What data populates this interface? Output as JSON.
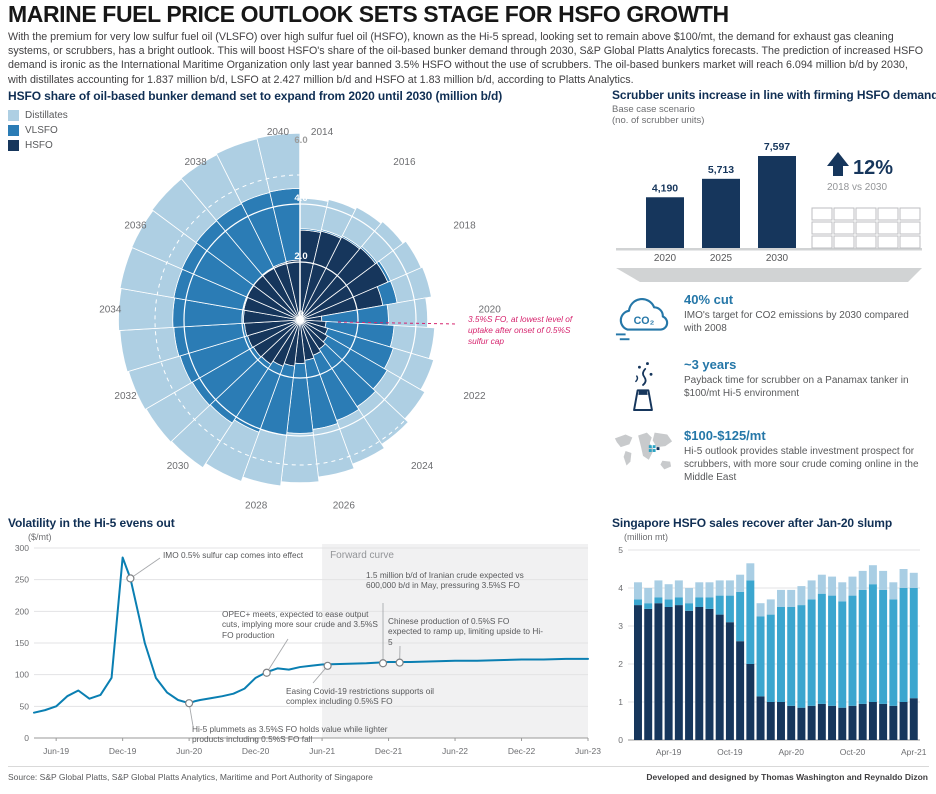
{
  "header": {
    "title": "MARINE FUEL PRICE OUTLOOK SETS STAGE FOR HSFO GROWTH",
    "intro": "With the premium for very low sulfur fuel oil (VLSFO) over high sulfur fuel oil (HSFO), known as the Hi-5 spread, looking set to remain above $100/mt, the demand for exhaust gas cleaning systems, or scrubbers, has a bright outlook. This will boost HSFO's share of the oil-based bunker demand through 2030, S&P Global Platts Analytics forecasts. The prediction of increased HSFO demand is ironic as the International Maritime Organization only last year banned 3.5% HSFO without the use of scrubbers. The oil-based bunkers market will reach 6.094 million b/d by 2030, with distillates accounting for 1.837 million b/d, LSFO at 2.427 million b/d and HSFO at 1.83 million b/d, according to Platts Analytics.",
    "accent_color": "#d6246e"
  },
  "polar": {
    "legend": [
      "Distillates",
      "VLSFO",
      "HSFO"
    ]
  },
  "highlights": [
    {
      "headline": "40% cut",
      "text": "IMO's target for CO2 emissions by 2030 compared with 2008"
    },
    {
      "headline": "~3 years",
      "text": "Payback time for scrubber on a Panamax tanker in $100/mt Hi-5 environment"
    },
    {
      "headline": "$100-$125/mt",
      "text": "Hi-5 outlook provides stable investment prospect for scrubbers, with more sour crude coming online in the Middle East"
    }
  ],
  "highlights_extra": {
    "co2_label": "CO₂"
  },
  "footer": {
    "source": "Source: S&P Global Platts, S&P Global Platts Analytics, Maritime and Port Authority of Singapore",
    "credit": "Developed and designed by Thomas Washington and Reynaldo Dizon"
  },
  "chart_data": [
    {
      "type": "bar",
      "variant": "polar-stacked",
      "title": "HSFO share of oil-based bunker demand set to expand from 2020 until 2030 (million b/d)",
      "unit": "million b/d",
      "rmax": 6.0,
      "ring_ticks": [
        0,
        2,
        4,
        6
      ],
      "ring_tick_labels": [
        "0",
        "2.0",
        "4.0",
        "6.0"
      ],
      "years": [
        2014,
        2015,
        2016,
        2017,
        2018,
        2019,
        2020,
        2021,
        2022,
        2023,
        2024,
        2025,
        2026,
        2027,
        2028,
        2029,
        2030,
        2031,
        2032,
        2033,
        2034,
        2035,
        2036,
        2037,
        2038,
        2039,
        2040
      ],
      "labeled_years": [
        2014,
        2016,
        2018,
        2020,
        2022,
        2024,
        2026,
        2028,
        2030,
        2032,
        2034,
        2036,
        2038,
        2040
      ],
      "annotation": "3.5%S FO, at lowest level of uptake after onset of 0.5%S sulfur cap",
      "series": [
        {
          "name": "HSFO",
          "color": "#16365c",
          "values": [
            3.1,
            3.15,
            3.2,
            3.25,
            3.3,
            2.9,
            0.75,
            0.9,
            1.0,
            1.1,
            1.2,
            1.3,
            1.4,
            1.5,
            1.6,
            1.7,
            1.83,
            1.86,
            1.89,
            1.92,
            1.95,
            1.97,
            1.99,
            2.01,
            2.03,
            2.05,
            2.07
          ]
        },
        {
          "name": "VLSFO",
          "color": "#2b7cb5",
          "values": [
            0.05,
            0.05,
            0.05,
            0.06,
            0.1,
            0.5,
            2.3,
            2.35,
            2.36,
            2.37,
            2.38,
            2.39,
            2.4,
            2.41,
            2.41,
            2.42,
            2.427,
            2.43,
            2.43,
            2.44,
            2.44,
            2.45,
            2.45,
            2.46,
            2.46,
            2.47,
            2.47
          ]
        },
        {
          "name": "Distillates",
          "color": "#aecfe3",
          "values": [
            1.05,
            1.07,
            1.1,
            1.12,
            1.15,
            1.2,
            1.35,
            1.4,
            1.45,
            1.5,
            1.55,
            1.6,
            1.65,
            1.7,
            1.75,
            1.8,
            1.837,
            1.84,
            1.85,
            1.86,
            1.87,
            1.88,
            1.88,
            1.89,
            1.89,
            1.9,
            1.9
          ]
        }
      ]
    },
    {
      "type": "bar",
      "title": "Scrubber units increase in line with firming HSFO demand",
      "subtitle": "Base case scenario",
      "unit_label": "(no. of scrubber units)",
      "categories": [
        "2020",
        "2025",
        "2030"
      ],
      "values": [
        4190,
        5713,
        7597
      ],
      "value_labels": [
        "4,190",
        "5,713",
        "7,597"
      ],
      "bar_color": "#16365c",
      "stat": {
        "direction": "up",
        "value": "12%",
        "caption": "2018 vs 2030"
      }
    },
    {
      "type": "line",
      "title": "Volatility in the Hi-5 evens out",
      "ylabel": "($/mt)",
      "ylim": [
        0,
        300
      ],
      "yticks": [
        0,
        50,
        100,
        150,
        200,
        250,
        300
      ],
      "x_months_from_apr19": [
        0,
        1,
        2,
        3,
        4,
        5,
        6,
        7,
        8,
        8.7,
        9.5,
        10,
        11,
        12,
        13,
        14,
        14.5,
        15,
        16,
        17,
        18,
        19,
        20,
        21,
        22,
        23,
        24,
        25,
        26,
        28,
        30,
        32,
        34,
        36,
        38,
        40,
        42,
        44,
        46,
        48,
        50
      ],
      "y": [
        40,
        44,
        50,
        66,
        75,
        62,
        68,
        95,
        285,
        252,
        190,
        150,
        95,
        72,
        60,
        55,
        58,
        60,
        63,
        66,
        70,
        78,
        95,
        104,
        110,
        108,
        112,
        114,
        116,
        117,
        118,
        120,
        120,
        121,
        122,
        122,
        123,
        124,
        124,
        125,
        125
      ],
      "xtick_months": [
        2,
        8,
        14,
        20,
        26,
        32,
        38,
        44,
        50
      ],
      "xtick_labels": [
        "Jun-19",
        "Dec-19",
        "Jun-20",
        "Dec-20",
        "Jun-21",
        "Dec-21",
        "Jun-22",
        "Dec-22",
        "Jun-23"
      ],
      "forward_region": {
        "start_month": 26,
        "label": "Forward curve"
      },
      "line_color": "#0a7fb2",
      "markers": [
        [
          8.7,
          252
        ],
        [
          14,
          55
        ],
        [
          21,
          103
        ],
        [
          26.5,
          114
        ],
        [
          31.5,
          118
        ],
        [
          33,
          119
        ]
      ],
      "annotations": [
        "IMO 0.5% sulfur cap comes into effect",
        "OPEC+ meets, expected to ease output cuts, implying more sour crude and 3.5%S FO production",
        "1.5 million b/d of Iranian crude expected vs 600,000 b/d in May, pressuring 3.5%S FO",
        "Chinese production of 0.5%S FO expected to ramp up, limiting upside to Hi-5",
        "Easing Covid-19 restrictions supports oil complex including 0.5%S FO",
        "Hi-5 plummets as 3.5%S FO holds value while lighter products including 0.5%S FO fall"
      ]
    },
    {
      "type": "bar",
      "variant": "stacked",
      "title": "Singapore HSFO sales recover after Jan-20 slump",
      "ylabel": "(million mt)",
      "ylim": [
        0,
        5
      ],
      "yticks": [
        0,
        1,
        2,
        3,
        4,
        5
      ],
      "n_months": 28,
      "xtick_indices": [
        3,
        9,
        15,
        21,
        27
      ],
      "xtick_labels": [
        "Apr-19",
        "Oct-19",
        "Apr-20",
        "Oct-20",
        "Apr-21"
      ],
      "series": [
        {
          "name": "segment_bottom",
          "color": "#16365c",
          "values": [
            3.55,
            3.45,
            3.6,
            3.5,
            3.55,
            3.4,
            3.5,
            3.45,
            3.3,
            3.1,
            2.6,
            2.0,
            1.15,
            1.0,
            1.0,
            0.9,
            0.85,
            0.9,
            0.95,
            0.9,
            0.85,
            0.9,
            0.95,
            1.0,
            0.95,
            0.9,
            1.0,
            1.1
          ]
        },
        {
          "name": "segment_middle",
          "color": "#3ba6cf",
          "values": [
            0.15,
            0.15,
            0.15,
            0.2,
            0.2,
            0.2,
            0.25,
            0.3,
            0.5,
            0.7,
            1.3,
            2.2,
            2.1,
            2.3,
            2.5,
            2.6,
            2.7,
            2.8,
            2.9,
            2.9,
            2.8,
            2.9,
            3.0,
            3.1,
            3.0,
            2.8,
            3.0,
            2.9
          ]
        },
        {
          "name": "segment_top",
          "color": "#a9cee4",
          "values": [
            0.45,
            0.4,
            0.45,
            0.4,
            0.45,
            0.4,
            0.4,
            0.4,
            0.4,
            0.4,
            0.45,
            0.45,
            0.35,
            0.4,
            0.45,
            0.45,
            0.5,
            0.5,
            0.5,
            0.5,
            0.5,
            0.5,
            0.5,
            0.5,
            0.5,
            0.45,
            0.5,
            0.4
          ]
        }
      ]
    }
  ]
}
